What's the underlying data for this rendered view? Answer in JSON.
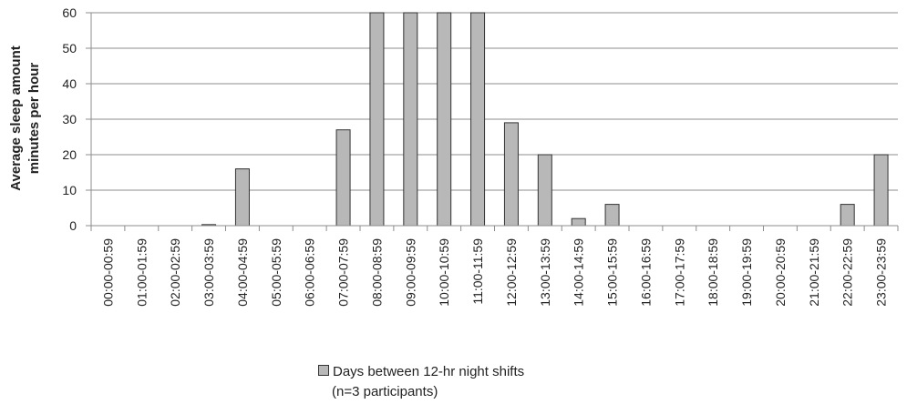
{
  "chart_data": {
    "type": "bar",
    "ylabel_lines": [
      "Average sleep amount",
      "minutes per hour"
    ],
    "ylim": [
      0,
      60
    ],
    "yticks": [
      "0",
      "10",
      "20",
      "30",
      "40",
      "50",
      "60"
    ],
    "grid": true,
    "categories": [
      "00:00-00:59",
      "01:00-01:59",
      "02:00-02:59",
      "03:00-03:59",
      "04:00-04:59",
      "05:00-05:59",
      "06:00-06:59",
      "07:00-07:59",
      "08:00-08:59",
      "09:00-09:59",
      "10:00-10:59",
      "11:00-11:59",
      "12:00-12:59",
      "13:00-13:59",
      "14:00-14:59",
      "15:00-15:59",
      "16:00-16:59",
      "17:00-17:59",
      "18:00-18:59",
      "19:00-19:59",
      "20:00-20:59",
      "21:00-21:59",
      "22:00-22:59",
      "23:00-23:59"
    ],
    "series": [
      {
        "name": "Days between 12-hr night shifts (n=3 participants)",
        "legend_lines": [
          "Days between 12-hr night shifts",
          "(n=3 participants)"
        ],
        "color": "#b8b8b8",
        "values": [
          0,
          0,
          0,
          0.3,
          16,
          0,
          0,
          27,
          60,
          60,
          60,
          60,
          29,
          20,
          2,
          6,
          0,
          0,
          0,
          0,
          0,
          0,
          6,
          20
        ]
      }
    ],
    "legend_position": "bottom"
  }
}
